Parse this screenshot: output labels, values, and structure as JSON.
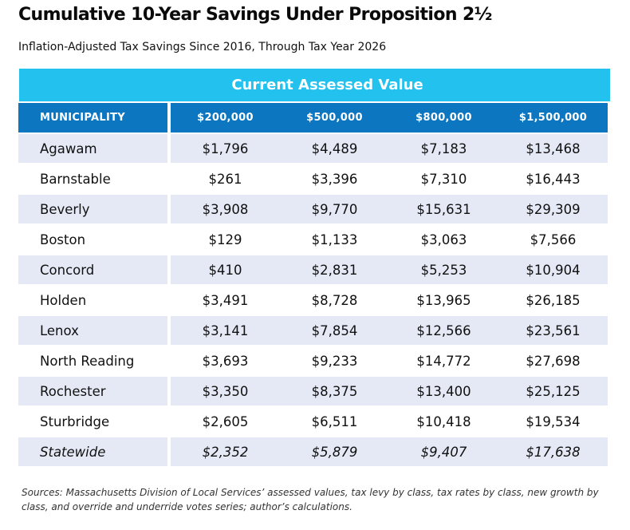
{
  "title": "Cumulative 10-Year Savings Under Proposition 2½",
  "subtitle": "Inflation-Adjusted Tax Savings Since 2016, Through Tax Year 2026",
  "table": {
    "group_header": "Current Assessed Value",
    "columns": [
      "MUNICIPALITY",
      "$200,000",
      "$500,000",
      "$800,000",
      "$1,500,000"
    ],
    "rows": [
      [
        "Agawam",
        "$1,796",
        "$4,489",
        "$7,183",
        "$13,468"
      ],
      [
        "Barnstable",
        "$261",
        "$3,396",
        "$7,310",
        "$16,443"
      ],
      [
        "Beverly",
        "$3,908",
        "$9,770",
        "$15,631",
        "$29,309"
      ],
      [
        "Boston",
        "$129",
        "$1,133",
        "$3,063",
        "$7,566"
      ],
      [
        "Concord",
        "$410",
        "$2,831",
        "$5,253",
        "$10,904"
      ],
      [
        "Holden",
        "$3,491",
        "$8,728",
        "$13,965",
        "$26,185"
      ],
      [
        "Lenox",
        "$3,141",
        "$7,854",
        "$12,566",
        "$23,561"
      ],
      [
        "North Reading",
        "$3,693",
        "$9,233",
        "$14,772",
        "$27,698"
      ],
      [
        "Rochester",
        "$3,350",
        "$8,375",
        "$13,400",
        "$25,125"
      ],
      [
        "Sturbridge",
        "$2,605",
        "$6,511",
        "$10,418",
        "$19,534"
      ],
      [
        "Statewide",
        "$2,352",
        "$5,879",
        "$9,407",
        "$17,638"
      ]
    ]
  },
  "source": "Sources: Massachusetts Division of Local Services’ assessed values, tax levy by class, tax rates by class, new growth by class, and override and underride votes series; author’s calculations.",
  "colors": {
    "band": "#22c1ee",
    "header": "#0d76c1",
    "row_alt": "#e4e9f5"
  }
}
